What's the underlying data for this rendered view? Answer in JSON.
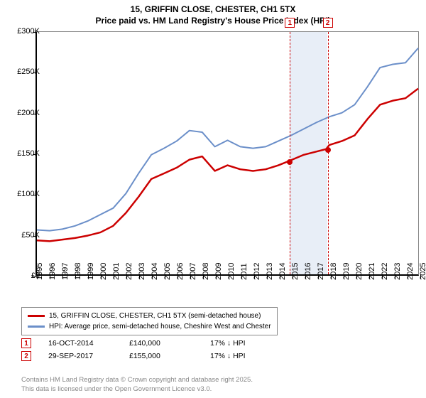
{
  "title_line1": "15, GRIFFIN CLOSE, CHESTER, CH1 5TX",
  "title_line2": "Price paid vs. HM Land Registry's House Price Index (HPI)",
  "chart": {
    "type": "line",
    "background_color": "#ffffff",
    "plot_border_color": "#000000",
    "x_years": [
      1995,
      1996,
      1997,
      1998,
      1999,
      2000,
      2001,
      2002,
      2003,
      2004,
      2005,
      2006,
      2007,
      2008,
      2009,
      2010,
      2011,
      2012,
      2013,
      2014,
      2015,
      2016,
      2017,
      2018,
      2019,
      2020,
      2021,
      2022,
      2023,
      2024,
      2025
    ],
    "ylim": [
      0,
      300000
    ],
    "ytick_step": 50000,
    "ytick_labels": [
      "£0",
      "£50K",
      "£100K",
      "£150K",
      "£200K",
      "£250K",
      "£300K"
    ],
    "highlight_band": {
      "x_from": 2014.79,
      "x_to": 2017.75,
      "color": "#e8eef7"
    },
    "markers": [
      {
        "n": "1",
        "x": 2014.79,
        "line_color": "#cc0000",
        "dot_color": "#cc0000",
        "dot_y": 140000
      },
      {
        "n": "2",
        "x": 2017.75,
        "line_color": "#cc0000",
        "dot_color": "#cc0000",
        "dot_y": 155000
      }
    ],
    "series": [
      {
        "name": "price_paid",
        "color": "#cc0000",
        "width": 2.5,
        "data": [
          [
            1995,
            42000
          ],
          [
            1996,
            41000
          ],
          [
            1997,
            43000
          ],
          [
            1998,
            45000
          ],
          [
            1999,
            48000
          ],
          [
            2000,
            52000
          ],
          [
            2001,
            60000
          ],
          [
            2002,
            76000
          ],
          [
            2003,
            96000
          ],
          [
            2004,
            118000
          ],
          [
            2005,
            125000
          ],
          [
            2006,
            132000
          ],
          [
            2007,
            142000
          ],
          [
            2008,
            146000
          ],
          [
            2009,
            128000
          ],
          [
            2010,
            135000
          ],
          [
            2011,
            130000
          ],
          [
            2012,
            128000
          ],
          [
            2013,
            130000
          ],
          [
            2014,
            135000
          ],
          [
            2014.79,
            140000
          ],
          [
            2016,
            148000
          ],
          [
            2017.75,
            155000
          ],
          [
            2018,
            160000
          ],
          [
            2019,
            165000
          ],
          [
            2020,
            172000
          ],
          [
            2021,
            192000
          ],
          [
            2022,
            210000
          ],
          [
            2023,
            215000
          ],
          [
            2024,
            218000
          ],
          [
            2025,
            230000
          ]
        ]
      },
      {
        "name": "hpi",
        "color": "#6b8fc9",
        "width": 2,
        "data": [
          [
            1995,
            55000
          ],
          [
            1996,
            54000
          ],
          [
            1997,
            56000
          ],
          [
            1998,
            60000
          ],
          [
            1999,
            66000
          ],
          [
            2000,
            74000
          ],
          [
            2001,
            82000
          ],
          [
            2002,
            100000
          ],
          [
            2003,
            125000
          ],
          [
            2004,
            148000
          ],
          [
            2005,
            156000
          ],
          [
            2006,
            165000
          ],
          [
            2007,
            178000
          ],
          [
            2008,
            176000
          ],
          [
            2009,
            158000
          ],
          [
            2010,
            166000
          ],
          [
            2011,
            158000
          ],
          [
            2012,
            156000
          ],
          [
            2013,
            158000
          ],
          [
            2014,
            165000
          ],
          [
            2015,
            172000
          ],
          [
            2016,
            180000
          ],
          [
            2017,
            188000
          ],
          [
            2018,
            195000
          ],
          [
            2019,
            200000
          ],
          [
            2020,
            210000
          ],
          [
            2021,
            232000
          ],
          [
            2022,
            256000
          ],
          [
            2023,
            260000
          ],
          [
            2024,
            262000
          ],
          [
            2025,
            280000
          ]
        ]
      }
    ]
  },
  "legend": {
    "series1_label": "15, GRIFFIN CLOSE, CHESTER, CH1 5TX (semi-detached house)",
    "series1_color": "#cc0000",
    "series2_label": "HPI: Average price, semi-detached house, Cheshire West and Chester",
    "series2_color": "#6b8fc9"
  },
  "transactions": [
    {
      "n": "1",
      "date": "16-OCT-2014",
      "price": "£140,000",
      "change": "17% ↓ HPI"
    },
    {
      "n": "2",
      "date": "29-SEP-2017",
      "price": "£155,000",
      "change": "17% ↓ HPI"
    }
  ],
  "footer_line1": "Contains HM Land Registry data © Crown copyright and database right 2025.",
  "footer_line2": "This data is licensed under the Open Government Licence v3.0."
}
